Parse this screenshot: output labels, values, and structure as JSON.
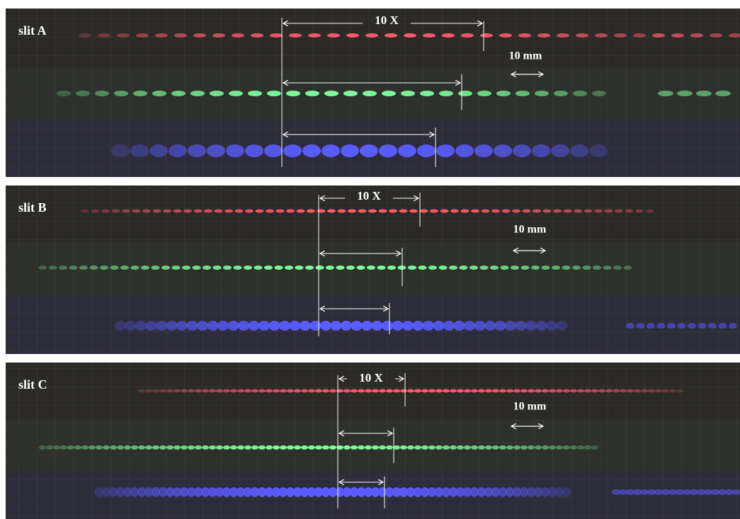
{
  "panels": [
    {
      "label": "slit A",
      "period_label": "10 X",
      "scale_label": "10 mm"
    },
    {
      "label": "slit B",
      "period_label": "10 X",
      "scale_label": "10 mm"
    },
    {
      "label": "slit C",
      "period_label": "10 X",
      "scale_label": "10 mm"
    }
  ]
}
